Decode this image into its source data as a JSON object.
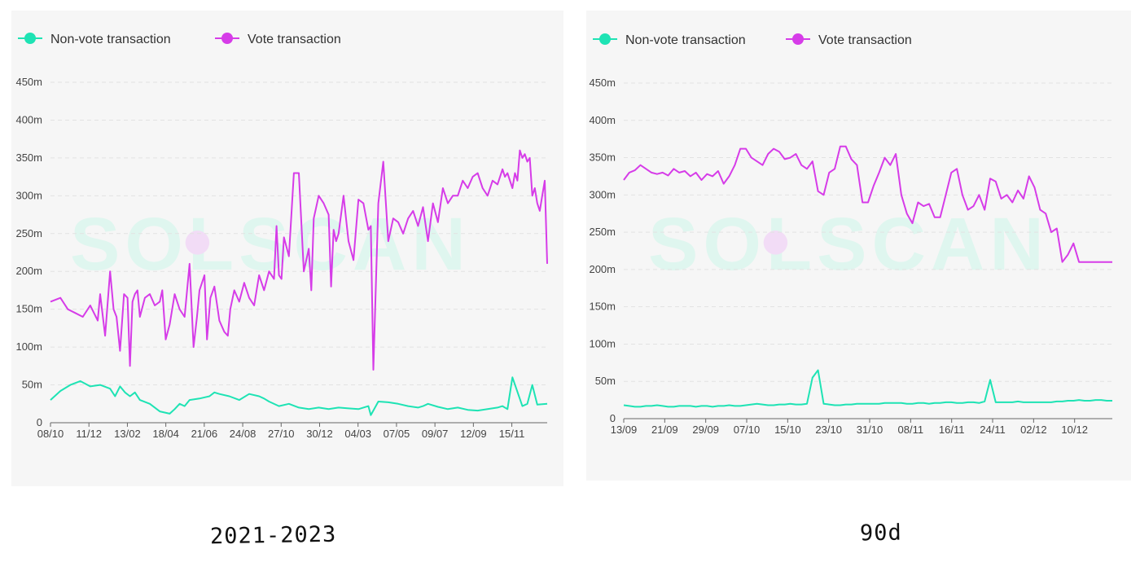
{
  "captions": {
    "left": "2021-2023",
    "right": "90d"
  },
  "watermark": "SOLSCAN",
  "colors": {
    "non_vote": "#1ee3b4",
    "vote": "#d63ce8",
    "grid": "#e2e2e2",
    "axis": "#666666",
    "watermark": "#dff6ef"
  },
  "chart_data": [
    {
      "type": "line",
      "title": "",
      "caption": "2021-2023",
      "legend": [
        "Non-vote transaction",
        "Vote transaction"
      ],
      "legend_position": "top-left",
      "xlabel": "",
      "ylabel": "",
      "ylim": [
        0,
        450
      ],
      "y_ticks": [
        "0",
        "50m",
        "100m",
        "150m",
        "200m",
        "250m",
        "300m",
        "350m",
        "400m",
        "450m"
      ],
      "x_ticks": [
        "08/10",
        "11/12",
        "13/02",
        "18/04",
        "21/06",
        "24/08",
        "27/10",
        "30/12",
        "04/03",
        "07/05",
        "09/07",
        "12/09",
        "15/11"
      ],
      "grid": true,
      "series": [
        {
          "name": "Vote transaction",
          "x_fraction": [
            0,
            0.02,
            0.035,
            0.05,
            0.065,
            0.08,
            0.095,
            0.1,
            0.11,
            0.12,
            0.127,
            0.133,
            0.14,
            0.148,
            0.155,
            0.16,
            0.165,
            0.17,
            0.175,
            0.18,
            0.19,
            0.2,
            0.21,
            0.22,
            0.225,
            0.232,
            0.24,
            0.25,
            0.26,
            0.27,
            0.28,
            0.288,
            0.295,
            0.3,
            0.31,
            0.315,
            0.322,
            0.33,
            0.34,
            0.35,
            0.357,
            0.362,
            0.37,
            0.38,
            0.39,
            0.4,
            0.41,
            0.42,
            0.43,
            0.44,
            0.45,
            0.455,
            0.46,
            0.465,
            0.47,
            0.48,
            0.49,
            0.5,
            0.51,
            0.52,
            0.525,
            0.53,
            0.54,
            0.55,
            0.56,
            0.565,
            0.57,
            0.575,
            0.58,
            0.59,
            0.6,
            0.61,
            0.62,
            0.63,
            0.64,
            0.645,
            0.65,
            0.66,
            0.67,
            0.68,
            0.69,
            0.7,
            0.71,
            0.72,
            0.73,
            0.74,
            0.75,
            0.76,
            0.77,
            0.78,
            0.79,
            0.8,
            0.81,
            0.82,
            0.83,
            0.84,
            0.85,
            0.86,
            0.87,
            0.88,
            0.89,
            0.9,
            0.91,
            0.915,
            0.92,
            0.93,
            0.935,
            0.94,
            0.945,
            0.95,
            0.955,
            0.96,
            0.965,
            0.97,
            0.975,
            0.98,
            0.985,
            0.99,
            0.995,
            1
          ],
          "values": [
            160,
            165,
            150,
            145,
            140,
            155,
            135,
            170,
            115,
            200,
            150,
            140,
            95,
            170,
            165,
            75,
            160,
            170,
            175,
            140,
            165,
            170,
            155,
            160,
            175,
            110,
            130,
            170,
            150,
            140,
            210,
            100,
            140,
            175,
            195,
            110,
            165,
            180,
            135,
            120,
            115,
            150,
            175,
            160,
            185,
            165,
            155,
            195,
            175,
            200,
            190,
            260,
            195,
            190,
            245,
            220,
            330,
            330,
            200,
            230,
            175,
            270,
            300,
            290,
            275,
            180,
            255,
            240,
            250,
            300,
            240,
            215,
            295,
            290,
            255,
            260,
            70,
            290,
            345,
            240,
            270,
            265,
            250,
            270,
            280,
            260,
            285,
            240,
            290,
            265,
            310,
            290,
            300,
            300,
            320,
            310,
            325,
            330,
            310,
            300,
            320,
            315,
            335,
            325,
            330,
            310,
            330,
            320,
            360,
            350,
            355,
            345,
            350,
            300,
            310,
            290,
            280,
            300,
            320,
            210
          ],
          "color": "#d63ce8"
        },
        {
          "name": "Non-vote transaction",
          "x_fraction": [
            0,
            0.02,
            0.04,
            0.06,
            0.08,
            0.1,
            0.12,
            0.13,
            0.14,
            0.15,
            0.16,
            0.17,
            0.18,
            0.2,
            0.22,
            0.24,
            0.25,
            0.26,
            0.27,
            0.28,
            0.3,
            0.32,
            0.33,
            0.34,
            0.36,
            0.38,
            0.4,
            0.42,
            0.43,
            0.44,
            0.46,
            0.48,
            0.5,
            0.52,
            0.54,
            0.56,
            0.58,
            0.6,
            0.62,
            0.64,
            0.645,
            0.66,
            0.68,
            0.7,
            0.72,
            0.74,
            0.75,
            0.76,
            0.78,
            0.8,
            0.82,
            0.84,
            0.86,
            0.88,
            0.9,
            0.91,
            0.92,
            0.93,
            0.95,
            0.96,
            0.97,
            0.98,
            1
          ],
          "values": [
            30,
            42,
            50,
            55,
            48,
            50,
            45,
            35,
            48,
            40,
            35,
            40,
            30,
            25,
            15,
            12,
            18,
            25,
            22,
            30,
            32,
            35,
            40,
            38,
            35,
            30,
            38,
            35,
            32,
            28,
            22,
            25,
            20,
            18,
            20,
            18,
            20,
            19,
            18,
            22,
            10,
            28,
            27,
            25,
            22,
            20,
            22,
            25,
            21,
            18,
            20,
            17,
            16,
            18,
            20,
            22,
            18,
            60,
            22,
            25,
            50,
            24,
            25
          ],
          "color": "#1ee3b4"
        }
      ]
    },
    {
      "type": "line",
      "title": "",
      "caption": "90d",
      "legend": [
        "Non-vote transaction",
        "Vote transaction"
      ],
      "legend_position": "top-left",
      "xlabel": "",
      "ylabel": "",
      "ylim": [
        0,
        450
      ],
      "y_ticks": [
        "0",
        "50m",
        "100m",
        "150m",
        "200m",
        "250m",
        "300m",
        "350m",
        "400m",
        "450m"
      ],
      "x_ticks": [
        "13/09",
        "21/09",
        "29/09",
        "07/10",
        "15/10",
        "23/10",
        "31/10",
        "08/11",
        "16/11",
        "24/11",
        "02/12",
        "10/12"
      ],
      "grid": true,
      "series": [
        {
          "name": "Vote transaction",
          "x": [
            0,
            1,
            2,
            3,
            4,
            5,
            6,
            7,
            8,
            9,
            10,
            11,
            12,
            13,
            14,
            15,
            16,
            17,
            18,
            19,
            20,
            21,
            22,
            23,
            24,
            25,
            26,
            27,
            28,
            29,
            30,
            31,
            32,
            33,
            34,
            35,
            36,
            37,
            38,
            39,
            40,
            41,
            42,
            43,
            44,
            45,
            46,
            47,
            48,
            49,
            50,
            51,
            52,
            53,
            54,
            55,
            56,
            57,
            58,
            59,
            60,
            61,
            62,
            63,
            64,
            65,
            66,
            67,
            68,
            69,
            70,
            71,
            72,
            73,
            74,
            75,
            76,
            77,
            78,
            79,
            80,
            81,
            82,
            83,
            84,
            85,
            86,
            87,
            88
          ],
          "values": [
            320,
            330,
            333,
            340,
            335,
            330,
            328,
            330,
            326,
            335,
            330,
            332,
            325,
            330,
            320,
            328,
            325,
            332,
            315,
            325,
            340,
            362,
            362,
            350,
            345,
            340,
            355,
            362,
            358,
            348,
            350,
            355,
            340,
            335,
            345,
            305,
            300,
            330,
            335,
            365,
            365,
            348,
            340,
            290,
            290,
            312,
            330,
            350,
            340,
            355,
            300,
            275,
            262,
            290,
            285,
            288,
            270,
            270,
            300,
            330,
            335,
            300,
            280,
            285,
            300,
            280,
            322,
            318,
            295,
            300,
            290,
            306,
            295,
            325,
            310,
            280,
            275,
            250,
            255,
            210,
            220,
            235,
            210,
            210,
            210,
            210,
            210,
            210,
            210
          ],
          "color": "#d63ce8"
        },
        {
          "name": "Non-vote transaction",
          "x": [
            0,
            1,
            2,
            3,
            4,
            5,
            6,
            7,
            8,
            9,
            10,
            11,
            12,
            13,
            14,
            15,
            16,
            17,
            18,
            19,
            20,
            21,
            22,
            23,
            24,
            25,
            26,
            27,
            28,
            29,
            30,
            31,
            32,
            33,
            34,
            35,
            36,
            37,
            38,
            39,
            40,
            41,
            42,
            43,
            44,
            45,
            46,
            47,
            48,
            49,
            50,
            51,
            52,
            53,
            54,
            55,
            56,
            57,
            58,
            59,
            60,
            61,
            62,
            63,
            64,
            65,
            66,
            67,
            68,
            69,
            70,
            71,
            72,
            73,
            74,
            75,
            76,
            77,
            78,
            79,
            80,
            81,
            82,
            83,
            84,
            85,
            86,
            87,
            88
          ],
          "values": [
            18,
            17,
            16,
            16,
            17,
            17,
            18,
            17,
            16,
            16,
            17,
            17,
            17,
            16,
            17,
            17,
            16,
            17,
            17,
            18,
            17,
            17,
            18,
            19,
            20,
            19,
            18,
            18,
            19,
            19,
            20,
            19,
            19,
            20,
            55,
            65,
            20,
            19,
            18,
            18,
            19,
            19,
            20,
            20,
            20,
            20,
            20,
            21,
            21,
            21,
            21,
            20,
            20,
            21,
            21,
            20,
            21,
            21,
            22,
            22,
            21,
            21,
            22,
            22,
            21,
            23,
            52,
            22,
            22,
            22,
            22,
            23,
            22,
            22,
            22,
            22,
            22,
            22,
            23,
            23,
            24,
            24,
            25,
            24,
            24,
            25,
            25,
            24,
            24
          ],
          "color": "#1ee3b4"
        }
      ]
    }
  ]
}
